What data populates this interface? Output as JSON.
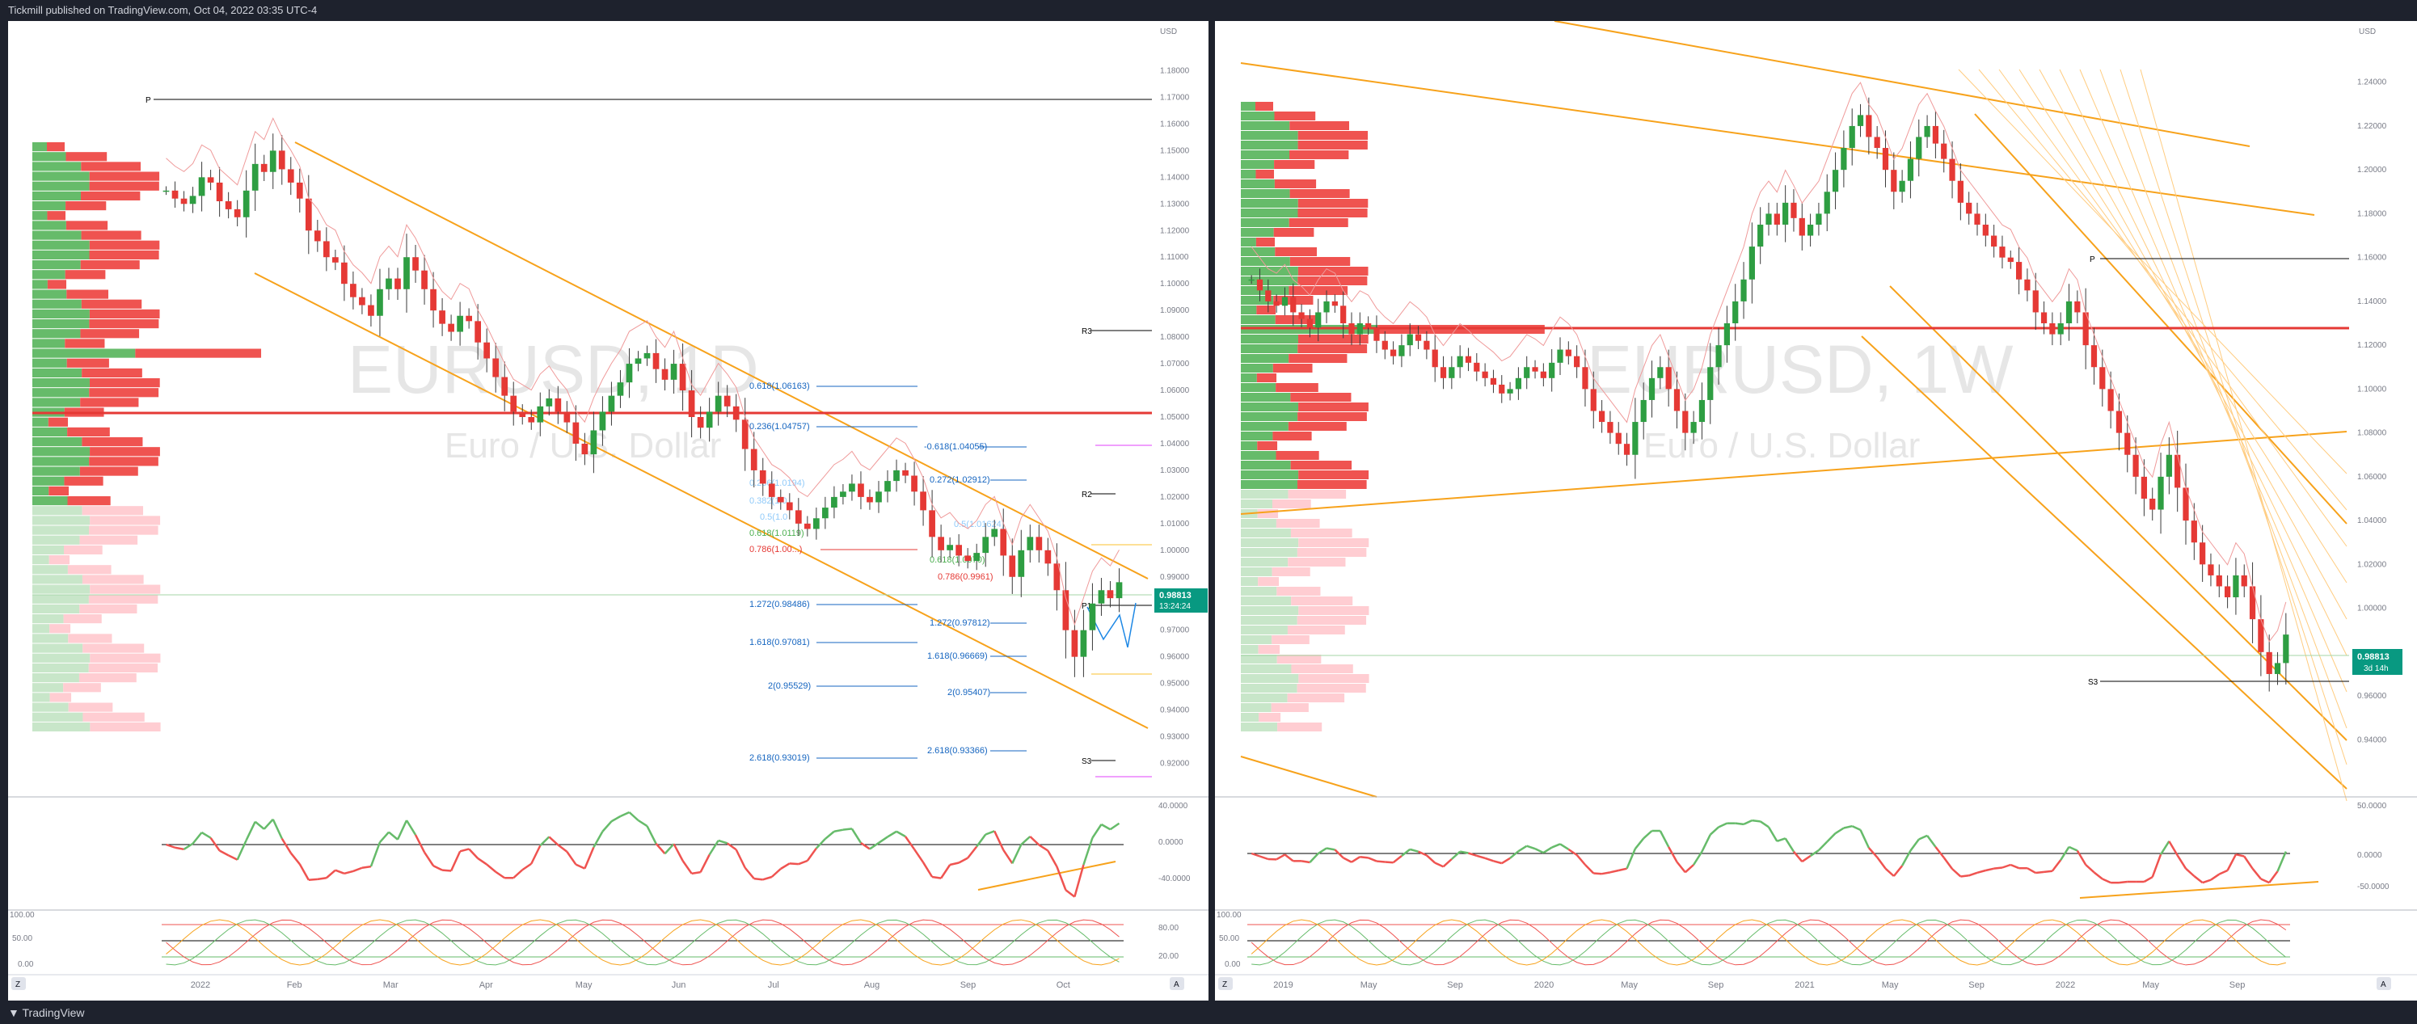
{
  "header": {
    "published": "Tickmill published on TradingView.com, Oct 04, 2022 03:35 UTC-4"
  },
  "footer": {
    "brand": "TradingView"
  },
  "left_chart": {
    "watermark_symbol": "EURUSD, 1D",
    "watermark_desc": "Euro / U.S. Dollar",
    "currency": "USD",
    "price_label": "0.98813",
    "countdown": "13:24:24",
    "pivot_labels": {
      "p": "P",
      "r3": "R3",
      "r2": "R2",
      "p1": "P1",
      "s3": "S3"
    },
    "fib_left": [
      "0.618(1.06163)",
      "0.236(1.04757)",
      "0.236(1.0194)",
      "0.382(1.0",
      "0.5(1.0",
      "0.618(1.0119)",
      "0.786(1.00...)",
      "1.272(0.98486)",
      "1.618(0.97081)",
      "2(0.95529)",
      "2.618(0.93019)"
    ],
    "fib_right": [
      "-0.618(1.04055)",
      "0.272(1.02912)",
      "0.5(1.01624)",
      "0.618(1.0070)",
      "0.786(0.9961)",
      "1.272(0.97812)",
      "1.618(0.96669)",
      "2(0.95407)",
      "2.618(0.93366)"
    ],
    "x_labels": [
      "2022",
      "Feb",
      "Mar",
      "Apr",
      "May",
      "Jun",
      "Jul",
      "Aug",
      "Sep",
      "Oct"
    ],
    "osc1_labels": [
      "40.0000",
      "0.0000",
      "-40.0000"
    ],
    "osc2_labels": [
      "100.00",
      "50.00",
      "0.00"
    ],
    "osc2_right": [
      "80.00",
      "20.00"
    ],
    "corner_z": "Z",
    "corner_a": "A"
  },
  "right_chart": {
    "watermark_symbol": "EURUSD, 1W",
    "watermark_desc": "Euro / U.S. Dollar",
    "currency": "USD",
    "price_label": "0.98813",
    "countdown": "3d 14h",
    "pivot_labels": {
      "p": "P",
      "s3": "S3"
    },
    "x_labels": [
      "2019",
      "May",
      "Sep",
      "2020",
      "May",
      "Sep",
      "2021",
      "May",
      "Sep",
      "2022",
      "May",
      "Sep"
    ],
    "osc1_labels": [
      "50.0000",
      "0.0000",
      "-50.0000"
    ],
    "osc2_labels": [
      "100.00",
      "50.00",
      "0.00"
    ],
    "corner_z": "Z",
    "corner_a": "A"
  },
  "chart_data": [
    {
      "type": "candlestick",
      "symbol": "EURUSD",
      "interval": "1D",
      "ylim": [
        0.915,
        1.185
      ],
      "y_ticks": [
        1.18,
        1.17,
        1.16,
        1.15,
        1.14,
        1.13,
        1.12,
        1.11,
        1.1,
        1.09,
        1.08,
        1.07,
        1.06,
        1.05,
        1.04,
        1.03,
        1.02,
        1.01,
        1.0,
        0.99,
        0.98,
        0.97,
        0.96,
        0.95,
        0.94,
        0.93,
        0.92
      ],
      "y_tick_labels": [
        "1.18000",
        "1.17000",
        "1.16000",
        "1.15000",
        "1.14000",
        "1.13000",
        "1.12000",
        "1.11000",
        "1.10000",
        "1.09000",
        "1.08000",
        "1.07000",
        "1.06000",
        "1.05000",
        "1.04000",
        "1.03000",
        "1.02000",
        "1.01000",
        "1.00000",
        "0.99000",
        "0.98000",
        "0.97000",
        "0.96000",
        "0.95000",
        "0.94000",
        "0.93000",
        "0.92000"
      ],
      "last_price": 0.98813,
      "close_path": [
        1.135,
        1.132,
        1.13,
        1.133,
        1.14,
        1.138,
        1.131,
        1.128,
        1.125,
        1.135,
        1.145,
        1.142,
        1.15,
        1.143,
        1.138,
        1.132,
        1.12,
        1.116,
        1.11,
        1.108,
        1.1,
        1.095,
        1.092,
        1.088,
        1.098,
        1.102,
        1.098,
        1.11,
        1.105,
        1.098,
        1.09,
        1.085,
        1.082,
        1.088,
        1.086,
        1.078,
        1.072,
        1.065,
        1.058,
        1.052,
        1.05,
        1.048,
        1.054,
        1.057,
        1.052,
        1.048,
        1.04,
        1.036,
        1.045,
        1.052,
        1.058,
        1.063,
        1.07,
        1.072,
        1.074,
        1.068,
        1.064,
        1.07,
        1.06,
        1.05,
        1.046,
        1.052,
        1.058,
        1.054,
        1.049,
        1.038,
        1.03,
        1.025,
        1.02,
        1.018,
        1.015,
        1.01,
        1.008,
        1.012,
        1.016,
        1.02,
        1.022,
        1.025,
        1.02,
        1.018,
        1.022,
        1.026,
        1.03,
        1.028,
        1.022,
        1.015,
        1.005,
        1.0,
        1.002,
        0.998,
        0.996,
        0.999,
        1.005,
        1.008,
        0.998,
        0.99,
        1.0,
        1.005,
        1.0,
        0.995,
        0.985,
        0.97,
        0.96,
        0.97,
        0.98,
        0.985,
        0.982,
        0.988
      ]
    },
    {
      "type": "candlestick",
      "symbol": "EURUSD",
      "interval": "1W",
      "ylim": [
        0.925,
        1.255
      ],
      "y_ticks": [
        1.24,
        1.22,
        1.2,
        1.18,
        1.16,
        1.14,
        1.12,
        1.1,
        1.08,
        1.06,
        1.04,
        1.02,
        1.0,
        0.96,
        0.94
      ],
      "y_tick_labels": [
        "1.24000",
        "1.22000",
        "1.20000",
        "1.18000",
        "1.16000",
        "1.14000",
        "1.12000",
        "1.10000",
        "1.08000",
        "1.06000",
        "1.04000",
        "1.02000",
        "1.00000",
        "0.96000",
        "0.94000"
      ],
      "last_price": 0.98813,
      "close_path": [
        1.15,
        1.145,
        1.14,
        1.138,
        1.142,
        1.135,
        1.132,
        1.128,
        1.135,
        1.14,
        1.138,
        1.13,
        1.125,
        1.13,
        1.128,
        1.122,
        1.118,
        1.115,
        1.12,
        1.125,
        1.122,
        1.118,
        1.11,
        1.105,
        1.11,
        1.115,
        1.112,
        1.108,
        1.105,
        1.102,
        1.098,
        1.1,
        1.105,
        1.11,
        1.108,
        1.105,
        1.112,
        1.118,
        1.115,
        1.11,
        1.1,
        1.09,
        1.085,
        1.08,
        1.075,
        1.07,
        1.085,
        1.095,
        1.105,
        1.11,
        1.1,
        1.09,
        1.08,
        1.085,
        1.095,
        1.11,
        1.12,
        1.13,
        1.14,
        1.15,
        1.165,
        1.175,
        1.18,
        1.175,
        1.185,
        1.178,
        1.17,
        1.175,
        1.18,
        1.19,
        1.2,
        1.21,
        1.22,
        1.225,
        1.215,
        1.21,
        1.2,
        1.19,
        1.195,
        1.205,
        1.215,
        1.22,
        1.212,
        1.205,
        1.195,
        1.185,
        1.18,
        1.175,
        1.17,
        1.165,
        1.16,
        1.158,
        1.15,
        1.145,
        1.135,
        1.13,
        1.125,
        1.13,
        1.14,
        1.135,
        1.12,
        1.11,
        1.1,
        1.09,
        1.08,
        1.07,
        1.06,
        1.05,
        1.045,
        1.06,
        1.07,
        1.055,
        1.04,
        1.03,
        1.02,
        1.015,
        1.01,
        1.005,
        1.015,
        1.01,
        0.995,
        0.98,
        0.97,
        0.975,
        0.988
      ]
    }
  ]
}
